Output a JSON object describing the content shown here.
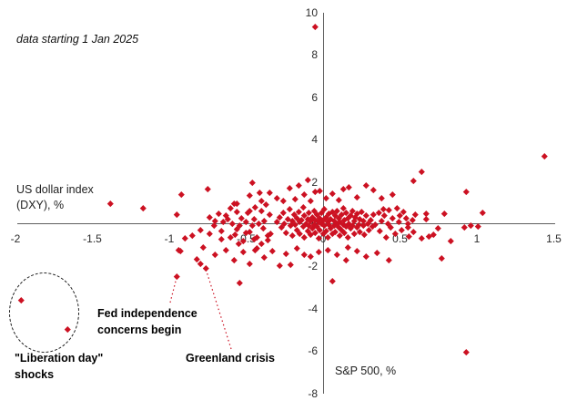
{
  "chart_data": {
    "type": "scatter",
    "subtitle": "data starting 1 Jan 2025",
    "xlabel": "S&P 500, %",
    "ylabel": "US dollar index\n(DXY), %",
    "xlim": [
      -2,
      1.5
    ],
    "ylim": [
      -8,
      10
    ],
    "grid": false,
    "legend": "none",
    "x_ticks": [
      -2,
      -1.5,
      -1,
      -0.5,
      0,
      0.5,
      1,
      1.5
    ],
    "x_tick_labels": [
      "-2",
      "-1.5",
      "-1",
      "-0.5",
      "0",
      "0.5",
      "1",
      "1.5"
    ],
    "y_ticks": [
      10,
      8,
      6,
      4,
      2,
      0,
      -2,
      -4,
      -6,
      -8
    ],
    "y_tick_labels": [
      "10",
      "8",
      "6",
      "4",
      "2",
      "0",
      "-2",
      "-4",
      "-6",
      "-8"
    ],
    "marker": {
      "shape": "diamond",
      "color": "#CC1122",
      "size": 4.6
    },
    "axis_color": "#5f5f5f",
    "annotations": [
      {
        "id": "fed",
        "text": "Fed independence\nconcerns begin",
        "target": [
          -0.95,
          -2.45
        ],
        "leader_color": "#CC1122"
      },
      {
        "id": "greenland",
        "text": "Greenland crisis",
        "target": [
          -0.76,
          -2.1
        ],
        "leader_color": "#CC1122"
      },
      {
        "id": "liberation",
        "text": "\"Liberation day\"\nshocks",
        "circled_points": [
          [
            -1.96,
            -3.6
          ],
          [
            -1.66,
            -4.95
          ]
        ]
      }
    ],
    "points": [
      [
        -0.05,
        9.35
      ],
      [
        1.44,
        3.2
      ],
      [
        0.64,
        2.5
      ],
      [
        0.59,
        2.05
      ],
      [
        -0.1,
        2.1
      ],
      [
        0.93,
        1.55
      ],
      [
        1.04,
        0.55
      ],
      [
        1.01,
        -0.1
      ],
      [
        0.96,
        -0.05
      ],
      [
        0.92,
        -0.13
      ],
      [
        0.83,
        -0.8
      ],
      [
        0.77,
        -1.6
      ],
      [
        0.93,
        -6.05
      ],
      [
        0.06,
        -2.7
      ],
      [
        -0.54,
        -2.75
      ],
      [
        -0.28,
        -1.95
      ],
      [
        -0.21,
        -1.9
      ],
      [
        -0.95,
        -2.45
      ],
      [
        -0.76,
        -2.1
      ],
      [
        -1.96,
        -3.6
      ],
      [
        -1.66,
        -4.95
      ],
      [
        -1.38,
        1.0
      ],
      [
        -1.17,
        0.75
      ],
      [
        -0.95,
        0.45
      ],
      [
        -0.94,
        -1.2
      ],
      [
        -0.85,
        -0.55
      ],
      [
        -0.8,
        -1.85
      ],
      [
        -0.82,
        -1.65
      ],
      [
        -0.93,
        -1.25
      ],
      [
        -0.74,
        -0.45
      ],
      [
        -0.6,
        -0.6
      ],
      [
        -0.44,
        -1.2
      ],
      [
        -0.46,
        1.95
      ],
      [
        -0.75,
        1.65
      ],
      [
        -0.92,
        1.4
      ],
      [
        -0.41,
        1.5
      ],
      [
        0.64,
        -0.65
      ],
      [
        0.79,
        0.52
      ],
      [
        0.45,
        1.4
      ],
      [
        0.43,
        -1.68
      ],
      [
        -0.56,
        1.0
      ],
      [
        -0.48,
        1.35
      ],
      [
        -0.4,
        1.12
      ],
      [
        -0.35,
        1.5
      ],
      [
        -0.3,
        1.25
      ],
      [
        -0.26,
        1.1
      ],
      [
        -0.22,
        1.72
      ],
      [
        -0.18,
        1.2
      ],
      [
        -0.16,
        1.85
      ],
      [
        -0.12,
        1.4
      ],
      [
        -0.08,
        1.1
      ],
      [
        -0.05,
        1.55
      ],
      [
        -0.02,
        1.6
      ],
      [
        0.02,
        1.25
      ],
      [
        0.06,
        1.45
      ],
      [
        0.1,
        1.15
      ],
      [
        0.13,
        1.68
      ],
      [
        0.17,
        1.77
      ],
      [
        0.22,
        1.3
      ],
      [
        0.28,
        1.85
      ],
      [
        0.33,
        1.64
      ],
      [
        0.38,
        1.25
      ],
      [
        -0.78,
        -1.1
      ],
      [
        -0.7,
        -1.45
      ],
      [
        -0.63,
        -1.2
      ],
      [
        -0.58,
        -1.7
      ],
      [
        -0.52,
        -1.3
      ],
      [
        -0.48,
        -1.85
      ],
      [
        -0.43,
        -1.15
      ],
      [
        -0.38,
        -1.55
      ],
      [
        -0.33,
        -1.25
      ],
      [
        -0.24,
        -1.4
      ],
      [
        -0.17,
        -1.15
      ],
      [
        -0.12,
        -1.42
      ],
      [
        -0.08,
        -1.5
      ],
      [
        -0.03,
        -1.3
      ],
      [
        0.03,
        -1.2
      ],
      [
        0.09,
        -1.45
      ],
      [
        0.15,
        -1.7
      ],
      [
        0.22,
        -1.25
      ],
      [
        0.28,
        -1.5
      ],
      [
        0.35,
        -1.35
      ],
      [
        0.16,
        -1.1
      ],
      [
        -0.9,
        -0.65
      ],
      [
        -0.8,
        -0.25
      ],
      [
        -0.66,
        -0.7
      ],
      [
        -0.55,
        -0.9
      ],
      [
        -0.5,
        -0.4
      ],
      [
        -0.45,
        -0.7
      ],
      [
        -0.4,
        -0.9
      ],
      [
        -0.36,
        -0.55
      ],
      [
        -0.74,
        0.34
      ],
      [
        -0.71,
        -0.04
      ],
      [
        -0.7,
        0.17
      ],
      [
        -0.68,
        0.5
      ],
      [
        -0.66,
        -0.3
      ],
      [
        -0.65,
        0.1
      ],
      [
        -0.63,
        0.43
      ],
      [
        -0.62,
        0.26
      ],
      [
        -0.6,
        0.78
      ],
      [
        -0.59,
        0.04
      ],
      [
        -0.58,
        0.99
      ],
      [
        -0.57,
        -0.5
      ],
      [
        -0.56,
        0.6
      ],
      [
        -0.56,
        -0.22
      ],
      [
        -0.54,
        -0.04
      ],
      [
        -0.53,
        0.3
      ],
      [
        -0.52,
        -0.8
      ],
      [
        -0.5,
        0.12
      ],
      [
        -0.49,
        0.55
      ],
      [
        -0.48,
        0.65
      ],
      [
        -0.48,
        -0.35
      ],
      [
        -0.46,
        -0.04
      ],
      [
        -0.45,
        0.25
      ],
      [
        -0.44,
        0.82
      ],
      [
        -0.43,
        -0.6
      ],
      [
        -0.42,
        0.04
      ],
      [
        -0.4,
        0.65
      ],
      [
        -0.39,
        -0.2
      ],
      [
        -0.38,
        0.17
      ],
      [
        -0.37,
        0.95
      ],
      [
        -0.36,
        -0.75
      ],
      [
        -0.35,
        0.47
      ],
      [
        -0.34,
        -0.45
      ],
      [
        0.36,
        0.55
      ],
      [
        0.37,
        -0.3
      ],
      [
        0.38,
        0.15
      ],
      [
        0.39,
        0.7
      ],
      [
        0.4,
        0.43
      ],
      [
        0.41,
        -0.6
      ],
      [
        0.42,
        0.05
      ],
      [
        0.43,
        0.69
      ],
      [
        0.44,
        -0.15
      ],
      [
        0.45,
        0.3
      ],
      [
        0.47,
        -0.45
      ],
      [
        0.48,
        0.78
      ],
      [
        0.49,
        0.1
      ],
      [
        0.5,
        0.43
      ],
      [
        0.51,
        -0.25
      ],
      [
        0.52,
        0.6
      ],
      [
        0.54,
        0.3
      ],
      [
        0.55,
        -0.13
      ],
      [
        0.55,
        0.05
      ],
      [
        0.56,
        -0.56
      ],
      [
        0.58,
        0.2
      ],
      [
        0.59,
        -0.35
      ],
      [
        0.6,
        0.45
      ],
      [
        0.67,
        0.52
      ],
      [
        0.67,
        0.26
      ],
      [
        0.69,
        -0.56
      ],
      [
        0.72,
        -0.47
      ],
      [
        0.75,
        -0.17
      ],
      [
        -0.3,
        0.1
      ],
      [
        -0.28,
        0.35
      ],
      [
        -0.27,
        -0.15
      ],
      [
        -0.26,
        0.55
      ],
      [
        -0.25,
        0.05
      ],
      [
        -0.24,
        -0.4
      ],
      [
        -0.23,
        0.25
      ],
      [
        -0.22,
        0.7
      ],
      [
        -0.21,
        -0.05
      ],
      [
        -0.2,
        0.15
      ],
      [
        -0.2,
        -0.55
      ],
      [
        -0.19,
        0.45
      ],
      [
        -0.18,
        0.0
      ],
      [
        -0.17,
        0.3
      ],
      [
        -0.17,
        -0.25
      ],
      [
        -0.16,
        0.6
      ],
      [
        -0.15,
        0.1
      ],
      [
        -0.15,
        -0.45
      ],
      [
        -0.14,
        0.2
      ],
      [
        -0.13,
        0.8
      ],
      [
        -0.13,
        -0.1
      ],
      [
        -0.12,
        0.4
      ],
      [
        -0.12,
        -0.6
      ],
      [
        -0.11,
        0.05
      ],
      [
        -0.1,
        0.25
      ],
      [
        -0.1,
        -0.3
      ],
      [
        -0.09,
        0.55
      ],
      [
        -0.09,
        -0.05
      ],
      [
        -0.08,
        0.15
      ],
      [
        -0.08,
        -0.5
      ],
      [
        -0.07,
        0.35
      ],
      [
        -0.07,
        -0.2
      ],
      [
        -0.06,
        0.65
      ],
      [
        -0.06,
        0.0
      ],
      [
        -0.05,
        0.2
      ],
      [
        -0.05,
        -0.4
      ],
      [
        -0.04,
        0.45
      ],
      [
        -0.04,
        -0.1
      ],
      [
        -0.03,
        0.1
      ],
      [
        -0.03,
        -0.65
      ],
      [
        -0.02,
        0.3
      ],
      [
        -0.02,
        -0.25
      ],
      [
        -0.01,
        0.55
      ],
      [
        -0.01,
        0.05
      ],
      [
        0.0,
        -0.45
      ],
      [
        0.0,
        0.2
      ],
      [
        0.01,
        0.7
      ],
      [
        0.01,
        -0.05
      ],
      [
        0.02,
        0.35
      ],
      [
        0.02,
        -0.3
      ],
      [
        0.03,
        0.1
      ],
      [
        0.03,
        -0.6
      ],
      [
        0.04,
        0.5
      ],
      [
        0.04,
        0.0
      ],
      [
        0.05,
        0.25
      ],
      [
        0.05,
        -0.2
      ],
      [
        0.06,
        0.6
      ],
      [
        0.06,
        -0.45
      ],
      [
        0.07,
        0.15
      ],
      [
        0.07,
        -0.05
      ],
      [
        0.08,
        0.4
      ],
      [
        0.08,
        -0.35
      ],
      [
        0.09,
        0.05
      ],
      [
        0.09,
        0.65
      ],
      [
        0.1,
        -0.15
      ],
      [
        0.1,
        0.3
      ],
      [
        0.11,
        -0.55
      ],
      [
        0.11,
        0.1
      ],
      [
        0.12,
        0.45
      ],
      [
        0.12,
        -0.25
      ],
      [
        0.13,
        0.0
      ],
      [
        0.13,
        0.75
      ],
      [
        0.14,
        -0.4
      ],
      [
        0.14,
        0.2
      ],
      [
        0.15,
        0.55
      ],
      [
        0.15,
        -0.1
      ],
      [
        0.16,
        0.3
      ],
      [
        0.16,
        -0.6
      ],
      [
        0.17,
        0.05
      ],
      [
        0.18,
        0.4
      ],
      [
        0.18,
        -0.2
      ],
      [
        0.19,
        0.65
      ],
      [
        0.19,
        -0.05
      ],
      [
        0.2,
        0.15
      ],
      [
        0.2,
        -0.45
      ],
      [
        0.21,
        0.35
      ],
      [
        0.22,
        -0.15
      ],
      [
        0.22,
        0.5
      ],
      [
        0.23,
        0.0
      ],
      [
        0.24,
        -0.35
      ],
      [
        0.24,
        0.25
      ],
      [
        0.25,
        0.6
      ],
      [
        0.26,
        -0.05
      ],
      [
        0.26,
        0.15
      ],
      [
        0.27,
        -0.5
      ],
      [
        0.28,
        0.4
      ],
      [
        0.29,
        0.05
      ],
      [
        0.3,
        -0.25
      ],
      [
        0.31,
        0.2
      ],
      [
        0.32,
        -0.1
      ],
      [
        0.33,
        0.45
      ],
      [
        0.34,
        0.0
      ]
    ]
  }
}
